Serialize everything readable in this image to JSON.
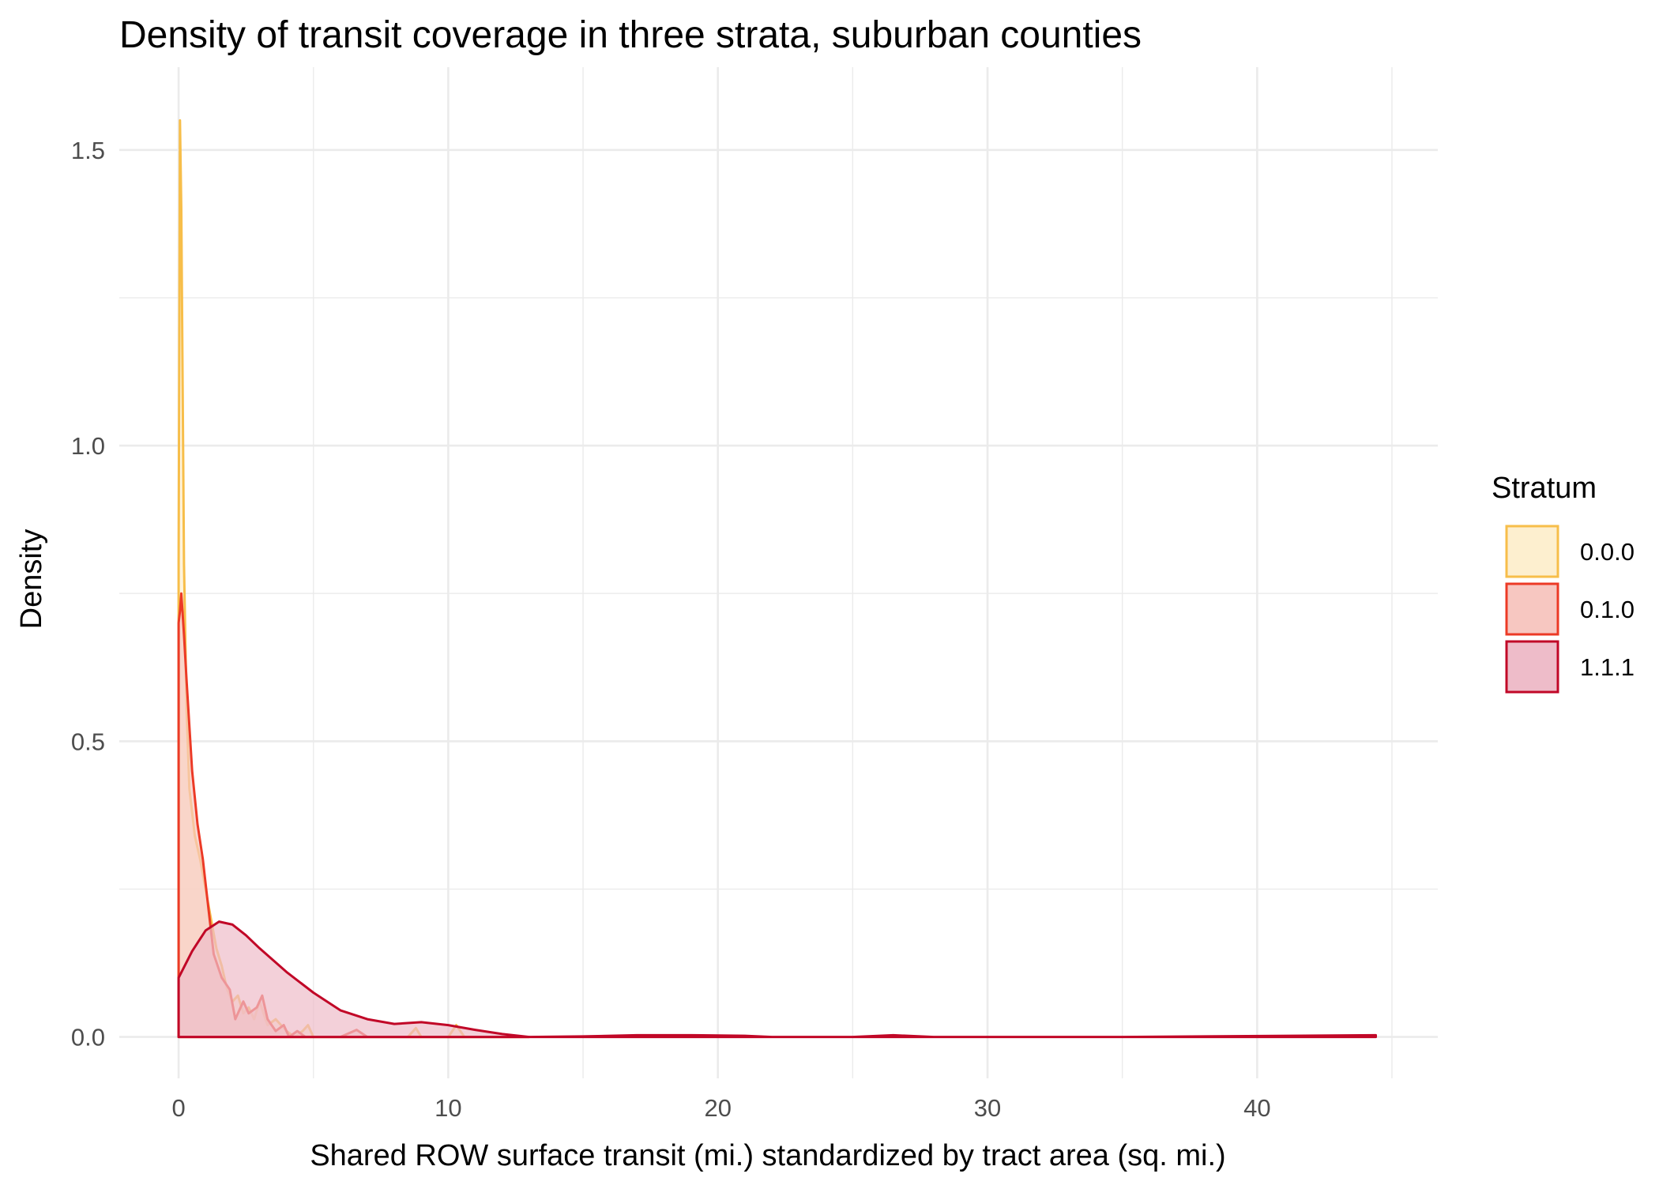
{
  "chart_data": {
    "type": "area",
    "title": "Density of transit coverage in three strata, suburban counties",
    "xlabel": "Shared ROW surface transit (mi.) standardized by tract area (sq. mi.)",
    "ylabel": "Density",
    "xlim": [
      -2.2,
      46.7
    ],
    "ylim": [
      -0.07,
      1.64
    ],
    "x_ticks": [
      0,
      10,
      20,
      30,
      40
    ],
    "y_ticks": [
      0.0,
      0.5,
      1.0,
      1.5
    ],
    "x_tick_labels": [
      "0",
      "10",
      "20",
      "30",
      "40"
    ],
    "y_tick_labels": [
      "0.0",
      "0.5",
      "1.0",
      "1.5"
    ],
    "grid": true,
    "legend": {
      "title": "Stratum",
      "position": "right",
      "items": [
        "0.0.0",
        "0.1.0",
        "1.1.1"
      ]
    },
    "series": [
      {
        "name": "0.0.0",
        "color": "#F7BE4A",
        "fill": "#FDEFCF",
        "x": [
          0,
          0.05,
          0.1,
          0.15,
          0.2,
          0.3,
          0.4,
          0.6,
          0.8,
          1.0,
          1.2,
          1.4,
          1.6,
          1.8,
          2.0,
          2.2,
          2.4,
          2.6,
          2.8,
          3.0,
          3.3,
          3.6,
          4.0,
          4.3,
          4.6,
          4.8,
          5.0,
          5.2,
          6.0,
          7.0,
          8.5,
          8.8,
          9.0,
          9.3,
          10.0,
          10.3,
          10.6,
          11.5,
          13.0
        ],
        "y": [
          0.8,
          1.55,
          1.4,
          1.1,
          0.8,
          0.55,
          0.42,
          0.34,
          0.3,
          0.25,
          0.2,
          0.15,
          0.12,
          0.08,
          0.06,
          0.07,
          0.04,
          0.05,
          0.03,
          0.06,
          0.02,
          0.03,
          0.01,
          0.0,
          0.01,
          0.02,
          0.0,
          0.0,
          0.0,
          0.0,
          0.0,
          0.015,
          0.0,
          0.0,
          0.0,
          0.02,
          0.0,
          0.0,
          0.0
        ]
      },
      {
        "name": "0.1.0",
        "color": "#EC3A26",
        "fill": "#F7C7C1",
        "x": [
          0,
          0.05,
          0.1,
          0.2,
          0.3,
          0.5,
          0.7,
          0.9,
          1.1,
          1.3,
          1.6,
          1.9,
          2.1,
          2.4,
          2.6,
          2.9,
          3.1,
          3.3,
          3.6,
          3.9,
          4.1,
          4.4,
          4.7,
          5.0,
          5.3,
          6.0,
          6.6,
          7.0,
          7.5,
          9.0,
          10.5,
          12.0,
          13.0
        ],
        "y": [
          0.7,
          0.72,
          0.75,
          0.68,
          0.6,
          0.45,
          0.36,
          0.3,
          0.22,
          0.14,
          0.1,
          0.08,
          0.03,
          0.06,
          0.04,
          0.05,
          0.07,
          0.03,
          0.01,
          0.02,
          0.0,
          0.01,
          0.0,
          0.0,
          0.0,
          0.0,
          0.012,
          0.0,
          0.0,
          0.0,
          0.0,
          0.0,
          0.0
        ]
      },
      {
        "name": "1.1.1",
        "color": "#C10727",
        "fill": "#EEBCC9",
        "x": [
          0,
          0.5,
          1.0,
          1.5,
          2.0,
          2.5,
          3.0,
          4.0,
          5.0,
          6.0,
          7.0,
          8.0,
          9.0,
          10.0,
          11.0,
          12.0,
          13.0,
          15.0,
          17.0,
          19.0,
          21.0,
          22.0,
          25.0,
          26.5,
          28.0,
          35.0,
          44.4
        ],
        "y": [
          0.1,
          0.145,
          0.18,
          0.195,
          0.19,
          0.172,
          0.15,
          0.11,
          0.075,
          0.045,
          0.03,
          0.022,
          0.025,
          0.02,
          0.012,
          0.005,
          0.0,
          0.001,
          0.003,
          0.003,
          0.002,
          0.0,
          0.0,
          0.003,
          0.0,
          0.0,
          0.003
        ]
      }
    ]
  }
}
